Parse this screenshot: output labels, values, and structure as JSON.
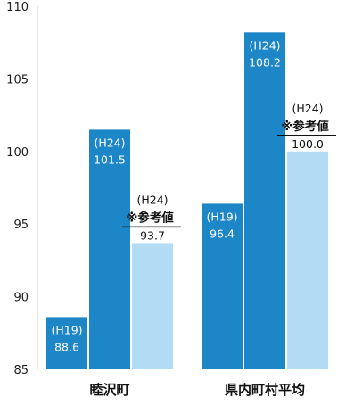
{
  "chart_data": {
    "type": "bar",
    "title": "",
    "xlabel": "",
    "ylabel": "",
    "ylim": [
      85,
      110
    ],
    "yticks": [
      85,
      90,
      95,
      100,
      105,
      110
    ],
    "grid": false,
    "categories": [
      "睦沢町",
      "県内町村平均"
    ],
    "bars": [
      {
        "category": "睦沢町",
        "period": "(H19)",
        "value": 88.6,
        "label": "88.6",
        "color": "#1d86c6"
      },
      {
        "category": "睦沢町",
        "period": "(H24)",
        "value": 101.5,
        "label": "101.5",
        "color": "#1d86c6"
      },
      {
        "category": "睦沢町",
        "period": "(H24)",
        "note": "※参考値",
        "value": 93.7,
        "label": "93.7",
        "color": "#b2dcf4"
      },
      {
        "category": "県内町村平均",
        "period": "(H19)",
        "value": 96.4,
        "label": "96.4",
        "color": "#1d86c6"
      },
      {
        "category": "県内町村平均",
        "period": "(H24)",
        "value": 108.2,
        "label": "108.2",
        "color": "#1d86c6"
      },
      {
        "category": "県内町村平均",
        "period": "(H24)",
        "note": "※参考値",
        "value": 100.0,
        "label": "100.0",
        "color": "#b2dcf4"
      }
    ]
  }
}
